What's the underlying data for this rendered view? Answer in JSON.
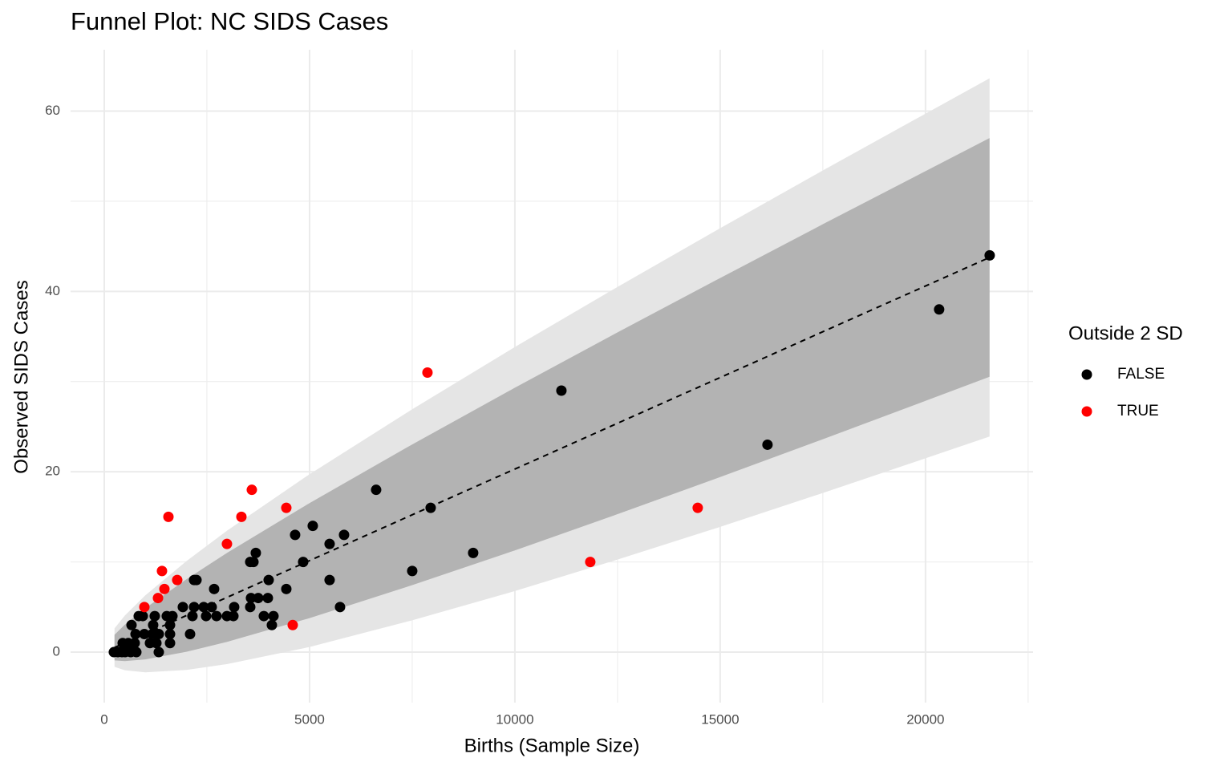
{
  "chart_data": {
    "type": "scatter",
    "title": "Funnel Plot: NC SIDS Cases",
    "x_label": "Births (Sample Size)",
    "y_label": "Observed SIDS Cases",
    "legend_title": "Outside 2 SD",
    "xlim": [
      -820,
      22620
    ],
    "ylim": [
      -5.6,
      66.8
    ],
    "xticks": [
      0,
      5000,
      10000,
      15000,
      20000
    ],
    "yticks": [
      0,
      20,
      40,
      60
    ],
    "x_minor_grid": [
      2500,
      7500,
      12500,
      17500,
      22500
    ],
    "y_minor_grid": [
      10,
      30,
      50
    ],
    "grid": true,
    "legend_position": "right",
    "bands": {
      "x": [
        250,
        500,
        1000,
        2000,
        3000,
        5000,
        7500,
        10000,
        12500,
        15000,
        17500,
        20000,
        21560
      ],
      "outer_lower": [
        -1.63,
        -2.01,
        -2.24,
        -1.97,
        -1.32,
        0.57,
        3.53,
        6.77,
        10.26,
        13.89,
        17.65,
        21.49,
        23.91
      ],
      "outer_upper": [
        2.64,
        4.05,
        6.3,
        10.09,
        13.5,
        19.73,
        26.93,
        33.83,
        40.5,
        47.01,
        53.41,
        59.71,
        63.63
      ],
      "inner_lower": [
        -0.92,
        -1.0,
        -0.81,
        0.04,
        1.15,
        3.77,
        7.43,
        11.28,
        15.3,
        19.41,
        23.61,
        27.86,
        30.53
      ],
      "inner_upper": [
        1.93,
        3.04,
        4.87,
        8.08,
        11.03,
        16.53,
        23.03,
        29.32,
        35.46,
        41.49,
        47.45,
        53.34,
        57.01
      ],
      "expected": [
        0.51,
        1.02,
        2.03,
        4.06,
        6.09,
        10.15,
        15.23,
        20.3,
        25.38,
        30.45,
        35.53,
        40.6,
        43.77
      ],
      "outer_color": "#e5e5e5",
      "inner_color": "#b3b3b3"
    },
    "series": [
      {
        "name": "FALSE",
        "color": "#000000",
        "x": [
          21563,
          20332,
          16152,
          11133,
          8984,
          7949,
          7500,
          6621,
          5840,
          5742,
          5488,
          5488,
          5078,
          4844,
          4648,
          4434,
          4121,
          4082,
          4004,
          3984,
          3887,
          3750,
          3691,
          3633,
          3555,
          3574,
          3555,
          3164,
          3145,
          2988,
          2734,
          2676,
          2617,
          2480,
          2422,
          2246,
          2188,
          2188,
          2148,
          2090,
          1914,
          1660,
          1602,
          1602,
          1602,
          1523,
          1328,
          1328,
          1270,
          1230,
          1191,
          1172,
          1113,
          977,
          938,
          840,
          781,
          762,
          742,
          664,
          645,
          586,
          508,
          449,
          430,
          332,
          234
        ],
        "values": [
          44,
          38,
          23,
          29,
          11,
          16,
          9,
          18,
          13,
          5,
          12,
          8,
          14,
          10,
          13,
          7,
          4,
          3,
          8,
          6,
          4,
          6,
          11,
          10,
          10,
          6,
          5,
          5,
          4,
          4,
          4,
          7,
          5,
          4,
          5,
          8,
          8,
          5,
          4,
          2,
          5,
          4,
          2,
          3,
          1,
          4,
          2,
          0,
          1,
          4,
          3,
          2,
          1,
          2,
          4,
          4,
          0,
          2,
          1,
          3,
          0,
          1,
          0,
          1,
          0,
          0,
          0
        ]
      },
      {
        "name": "TRUE",
        "color": "#ff0000",
        "x": [
          977,
          1309,
          1563,
          1406,
          1465,
          1777,
          2988,
          3340,
          3594,
          4434,
          4590,
          7871,
          11836,
          14453
        ],
        "values": [
          5,
          6,
          15,
          9,
          7,
          8,
          12,
          15,
          18,
          16,
          3,
          31,
          10,
          16
        ]
      }
    ]
  }
}
